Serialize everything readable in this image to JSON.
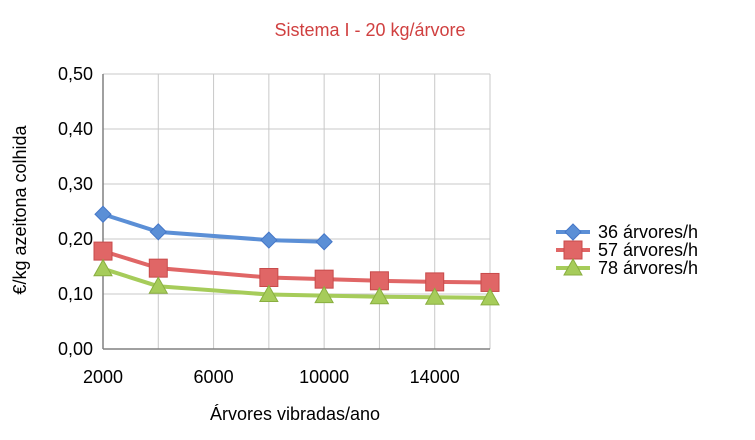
{
  "chart_data": {
    "type": "line",
    "title": "Sistema I - 20 kg/árvore",
    "xlabel": "Árvores vibradas/ano",
    "ylabel": "€/kg azeitona colhida",
    "xlim": [
      2000,
      16000
    ],
    "ylim": [
      0.0,
      0.5
    ],
    "x_ticks": [
      2000,
      6000,
      10000,
      14000
    ],
    "y_ticks": [
      "0,00",
      "0,10",
      "0,20",
      "0,30",
      "0,40",
      "0,50"
    ],
    "y_tick_values": [
      0.0,
      0.1,
      0.2,
      0.3,
      0.4,
      0.5
    ],
    "grid": true,
    "legend_position": "right",
    "series": [
      {
        "name": "36 árvores/h",
        "color": "#5b8fd6",
        "marker": "diamond",
        "x": [
          2000,
          4000,
          8000,
          10000
        ],
        "values": [
          0.245,
          0.213,
          0.198,
          0.195
        ]
      },
      {
        "name": "57 árvores/h",
        "color": "#e06666",
        "marker": "square",
        "x": [
          2000,
          4000,
          8000,
          10000,
          12000,
          14000,
          16000
        ],
        "values": [
          0.178,
          0.147,
          0.13,
          0.127,
          0.124,
          0.122,
          0.121
        ]
      },
      {
        "name": "78 árvores/h",
        "color": "#a6cc5a",
        "marker": "triangle",
        "x": [
          2000,
          4000,
          8000,
          10000,
          12000,
          14000,
          16000
        ],
        "values": [
          0.146,
          0.114,
          0.099,
          0.097,
          0.095,
          0.094,
          0.093
        ]
      }
    ]
  }
}
